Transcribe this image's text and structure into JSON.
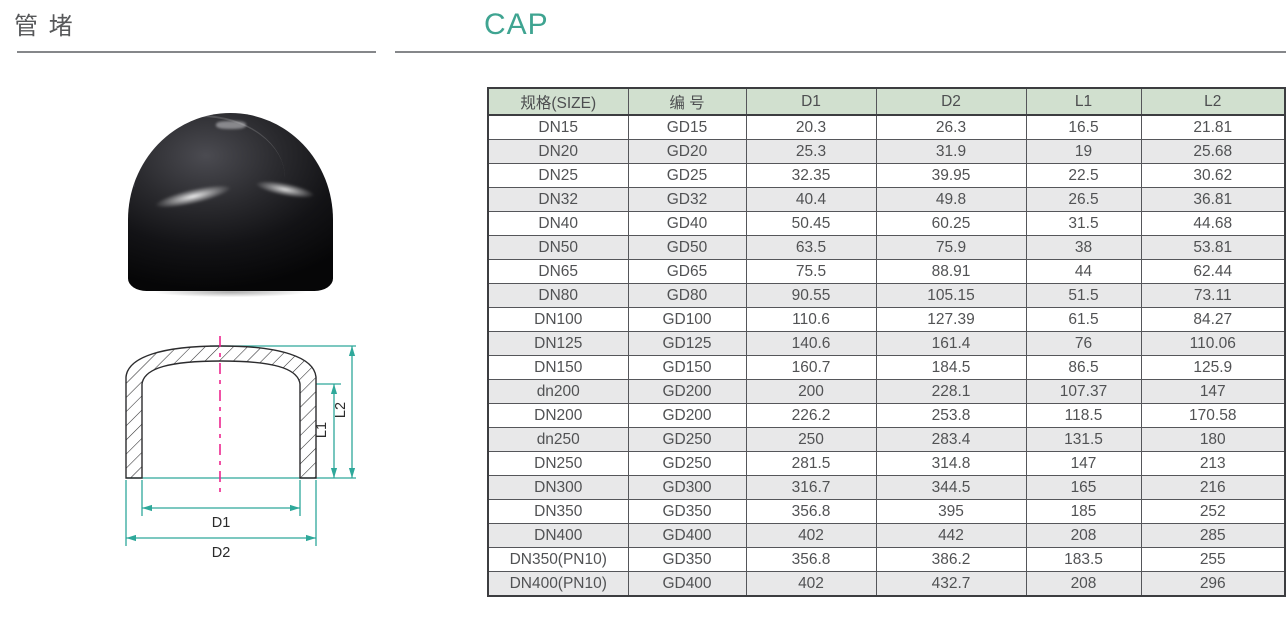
{
  "page": {
    "title_zh": "管 堵",
    "title_en": "CAP"
  },
  "table": {
    "headers": [
      "规格(SIZE)",
      "编 号",
      "D1",
      "D2",
      "L1",
      "L2"
    ],
    "rows": [
      [
        "DN15",
        "GD15",
        "20.3",
        "26.3",
        "16.5",
        "21.81"
      ],
      [
        "DN20",
        "GD20",
        "25.3",
        "31.9",
        "19",
        "25.68"
      ],
      [
        "DN25",
        "GD25",
        "32.35",
        "39.95",
        "22.5",
        "30.62"
      ],
      [
        "DN32",
        "GD32",
        "40.4",
        "49.8",
        "26.5",
        "36.81"
      ],
      [
        "DN40",
        "GD40",
        "50.45",
        "60.25",
        "31.5",
        "44.68"
      ],
      [
        "DN50",
        "GD50",
        "63.5",
        "75.9",
        "38",
        "53.81"
      ],
      [
        "DN65",
        "GD65",
        "75.5",
        "88.91",
        "44",
        "62.44"
      ],
      [
        "DN80",
        "GD80",
        "90.55",
        "105.15",
        "51.5",
        "73.11"
      ],
      [
        "DN100",
        "GD100",
        "110.6",
        "127.39",
        "61.5",
        "84.27"
      ],
      [
        "DN125",
        "GD125",
        "140.6",
        "161.4",
        "76",
        "110.06"
      ],
      [
        "DN150",
        "GD150",
        "160.7",
        "184.5",
        "86.5",
        "125.9"
      ],
      [
        "dn200",
        "GD200",
        "200",
        "228.1",
        "107.37",
        "147"
      ],
      [
        "DN200",
        "GD200",
        "226.2",
        "253.8",
        "118.5",
        "170.58"
      ],
      [
        "dn250",
        "GD250",
        "250",
        "283.4",
        "131.5",
        "180"
      ],
      [
        "DN250",
        "GD250",
        "281.5",
        "314.8",
        "147",
        "213"
      ],
      [
        "DN300",
        "GD300",
        "316.7",
        "344.5",
        "165",
        "216"
      ],
      [
        "DN350",
        "GD350",
        "356.8",
        "395",
        "185",
        "252"
      ],
      [
        "DN400",
        "GD400",
        "402",
        "442",
        "208",
        "285"
      ],
      [
        "DN350(PN10)",
        "GD350",
        "356.8",
        "386.2",
        "183.5",
        "255"
      ],
      [
        "DN400(PN10)",
        "GD400",
        "402",
        "432.7",
        "208",
        "296"
      ]
    ]
  },
  "drawing": {
    "labels": {
      "d1": "D1",
      "d2": "D2",
      "l1": "L1",
      "l2": "L2"
    }
  },
  "colors": {
    "accent_teal": "#3fa491",
    "header_green": "#d1e0cf",
    "row_alt": "#e8e8e9",
    "dim_teal": "#2ea89a",
    "centerline_pink": "#ec268f",
    "text_gray": "#57585a"
  }
}
